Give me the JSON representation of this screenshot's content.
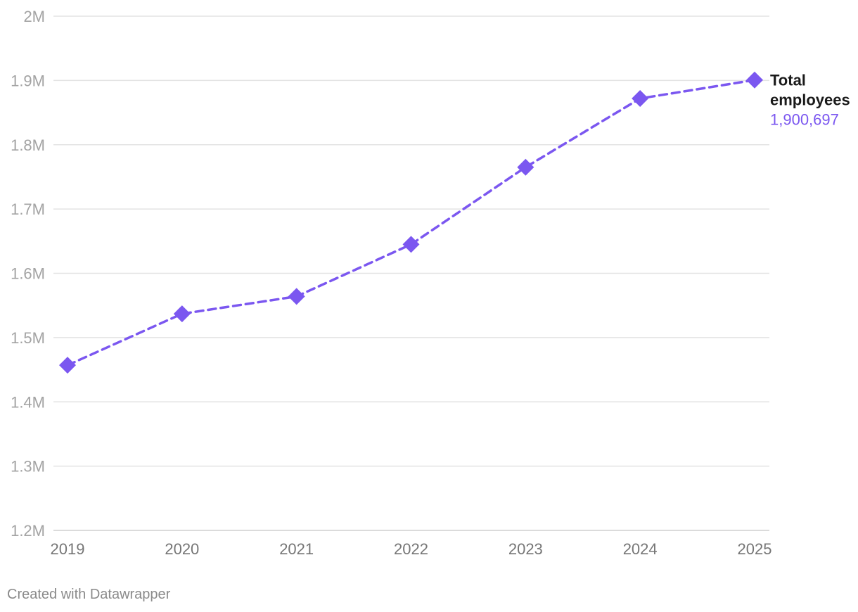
{
  "chart_data": {
    "type": "line",
    "x": [
      "2019",
      "2020",
      "2021",
      "2022",
      "2023",
      "2024",
      "2025"
    ],
    "series": [
      {
        "name": "Total employees",
        "values": [
          1457000,
          1537000,
          1564000,
          1645000,
          1765000,
          1872000,
          1900697
        ],
        "color": "#7b57f0",
        "line_style": "dashed",
        "marker": "diamond"
      }
    ],
    "last_value_label": "1,900,697",
    "ylim": [
      1200000,
      2000000
    ],
    "yticks": [
      {
        "value": 1200000,
        "label": "1.2M"
      },
      {
        "value": 1300000,
        "label": "1.3M"
      },
      {
        "value": 1400000,
        "label": "1.4M"
      },
      {
        "value": 1500000,
        "label": "1.5M"
      },
      {
        "value": 1600000,
        "label": "1.6M"
      },
      {
        "value": 1700000,
        "label": "1.7M"
      },
      {
        "value": 1800000,
        "label": "1.8M"
      },
      {
        "value": 1900000,
        "label": "1.9M"
      },
      {
        "value": 2000000,
        "label": "2M"
      }
    ],
    "grid": true
  },
  "footer": {
    "credit": "Created with Datawrapper"
  }
}
